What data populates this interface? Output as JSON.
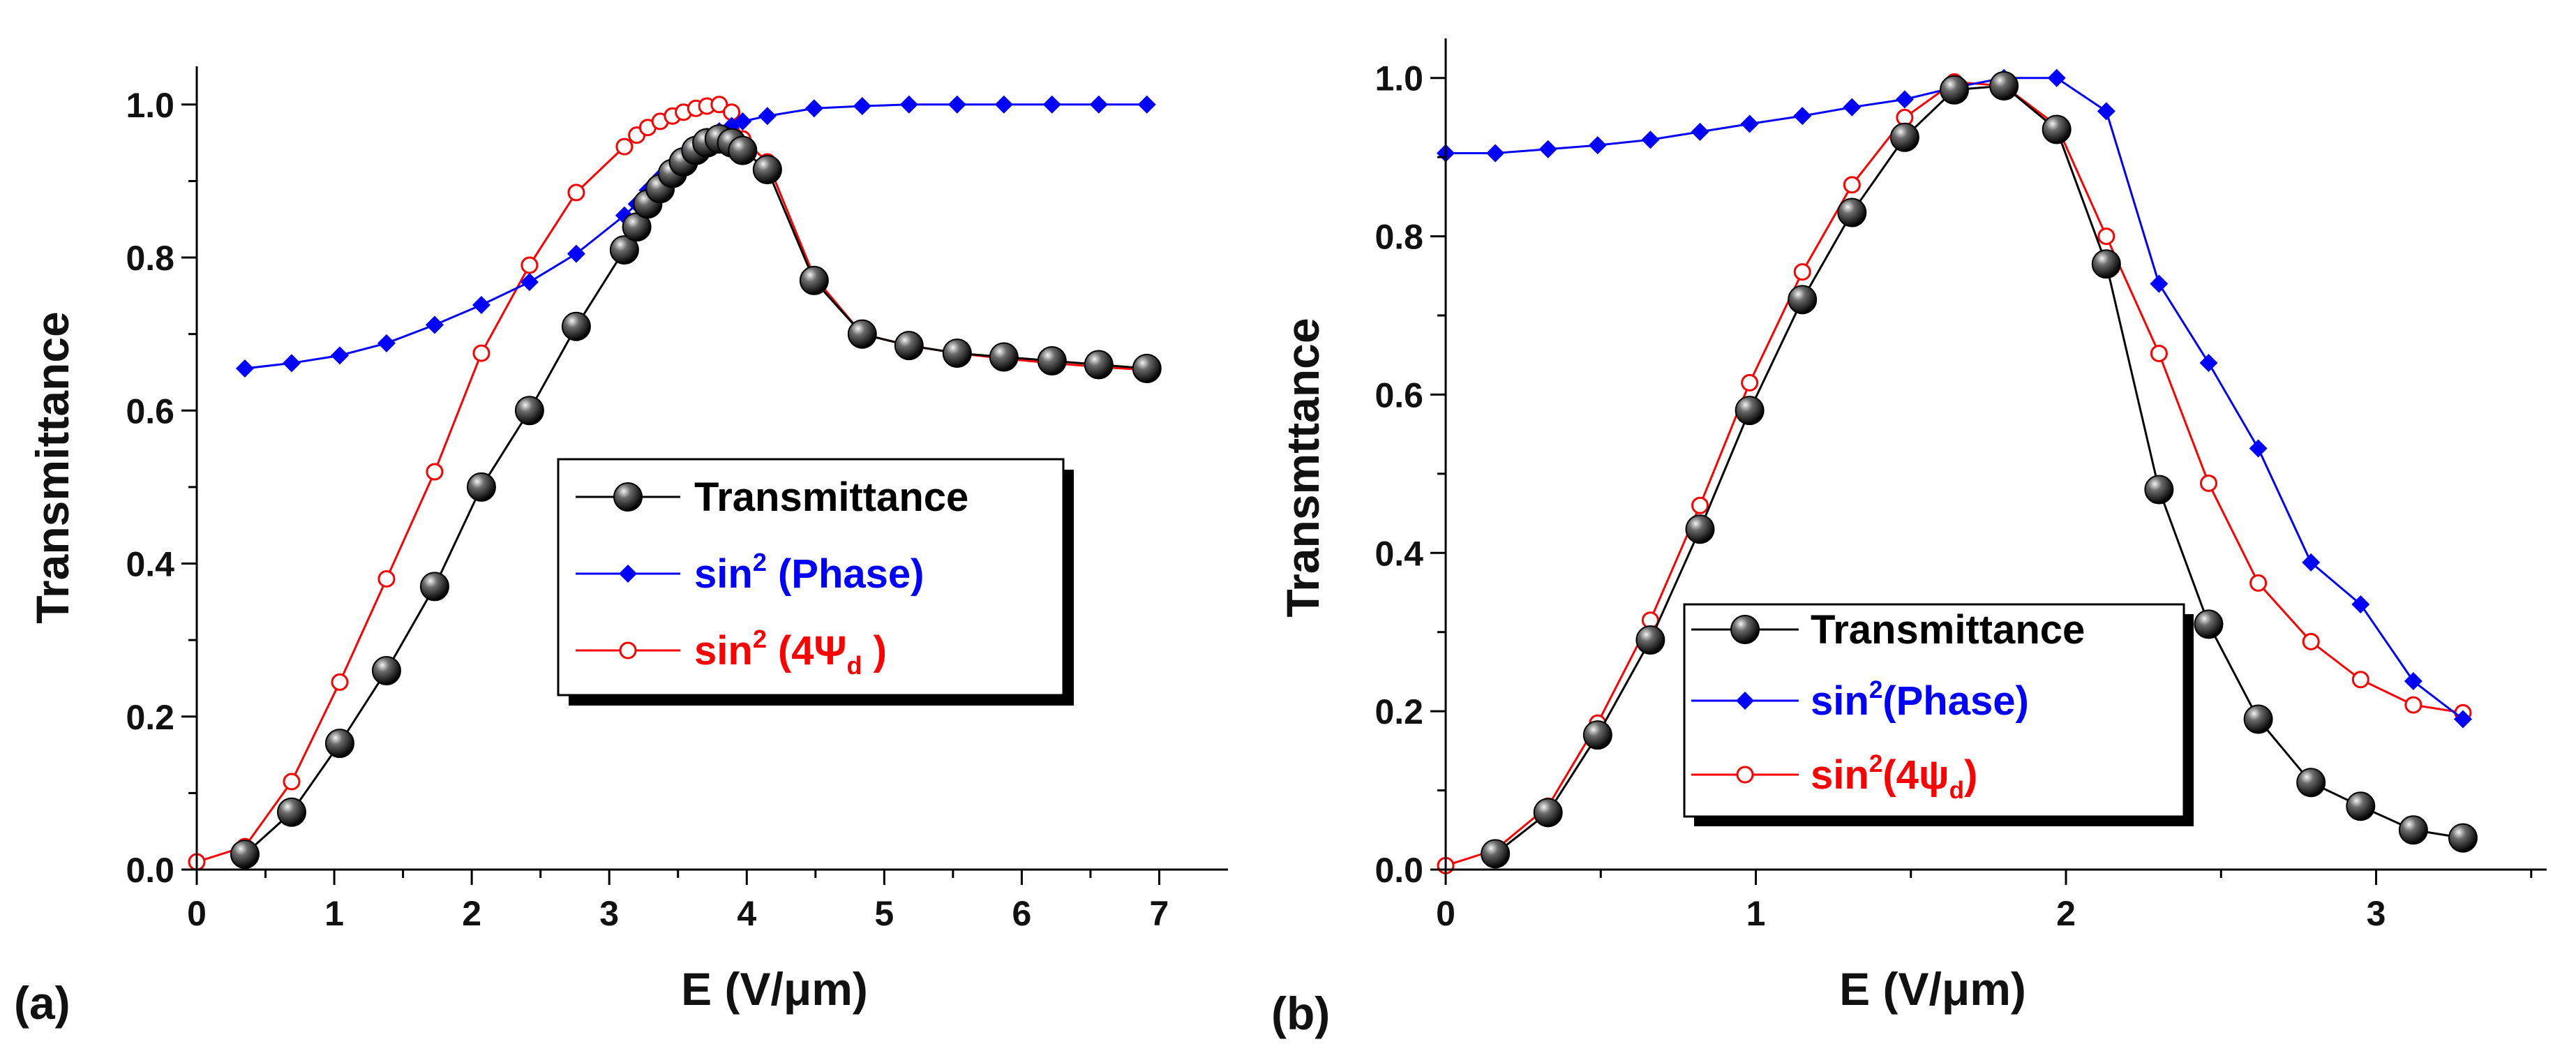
{
  "chart_data": [
    {
      "type": "line",
      "panel_label": "(a)",
      "xlabel": "E (V/μm)",
      "ylabel": "Transmittance",
      "xlim": [
        0,
        7.5
      ],
      "ylim": [
        0,
        1.05
      ],
      "xticks": [
        0,
        1,
        2,
        3,
        4,
        5,
        6,
        7
      ],
      "yticks": [
        0.0,
        0.2,
        0.4,
        0.6,
        0.8,
        1.0
      ],
      "xtick_labels": [
        "0",
        "1",
        "2",
        "3",
        "4",
        "5",
        "6",
        "7"
      ],
      "ytick_labels": [
        "0.0",
        "0.2",
        "0.4",
        "0.6",
        "0.8",
        "1.0"
      ],
      "legend_position": "center-right",
      "grid": false,
      "series": [
        {
          "name": "Transmittance",
          "color": "#000000",
          "marker": "sphere",
          "x": [
            0.35,
            0.69,
            1.04,
            1.38,
            1.73,
            2.07,
            2.42,
            2.76,
            3.11,
            3.2,
            3.28,
            3.37,
            3.46,
            3.54,
            3.63,
            3.71,
            3.8,
            3.89,
            3.97,
            4.15,
            4.49,
            4.84,
            5.18,
            5.53,
            5.87,
            6.22,
            6.56,
            6.91
          ],
          "y": [
            0.02,
            0.075,
            0.165,
            0.26,
            0.37,
            0.5,
            0.6,
            0.71,
            0.81,
            0.84,
            0.87,
            0.89,
            0.91,
            0.925,
            0.94,
            0.95,
            0.955,
            0.95,
            0.94,
            0.915,
            0.77,
            0.7,
            0.685,
            0.675,
            0.67,
            0.665,
            0.66,
            0.655
          ]
        },
        {
          "name": "sin² (Phase)",
          "color": "#0000ff",
          "marker": "diamond",
          "x": [
            0.35,
            0.69,
            1.04,
            1.38,
            1.73,
            2.07,
            2.42,
            2.76,
            3.11,
            3.2,
            3.28,
            3.37,
            3.46,
            3.54,
            3.63,
            3.71,
            3.8,
            3.89,
            3.97,
            4.15,
            4.49,
            4.84,
            5.18,
            5.53,
            5.87,
            6.22,
            6.56,
            6.91
          ],
          "y": [
            0.655,
            0.662,
            0.672,
            0.688,
            0.712,
            0.738,
            0.768,
            0.805,
            0.855,
            0.87,
            0.888,
            0.905,
            0.92,
            0.935,
            0.948,
            0.958,
            0.965,
            0.972,
            0.978,
            0.985,
            0.995,
            0.998,
            1.0,
            1.0,
            1.0,
            1.0,
            1.0,
            1.0
          ]
        },
        {
          "name": "sin² (4Ψd )",
          "color": "#ff0000",
          "marker": "open-circle",
          "x": [
            0.0,
            0.35,
            0.69,
            1.04,
            1.38,
            1.73,
            2.07,
            2.42,
            2.76,
            3.11,
            3.2,
            3.28,
            3.37,
            3.46,
            3.54,
            3.63,
            3.71,
            3.8,
            3.89,
            3.97,
            4.15,
            4.49,
            4.84,
            5.18,
            5.53,
            5.87,
            6.22,
            6.56,
            6.91
          ],
          "y": [
            0.01,
            0.03,
            0.115,
            0.245,
            0.38,
            0.52,
            0.675,
            0.79,
            0.885,
            0.945,
            0.96,
            0.97,
            0.978,
            0.985,
            0.99,
            0.995,
            0.998,
            1.0,
            0.99,
            0.955,
            0.925,
            0.775,
            0.7,
            0.685,
            0.675,
            0.668,
            0.662,
            0.657,
            0.653
          ]
        }
      ]
    },
    {
      "type": "line",
      "panel_label": "(b)",
      "xlabel": "E (V/μm)",
      "ylabel": "Transmttance",
      "xlim": [
        0,
        3.55
      ],
      "ylim": [
        0,
        1.05
      ],
      "xticks": [
        0,
        1,
        2,
        3
      ],
      "yticks": [
        0.0,
        0.2,
        0.4,
        0.6,
        0.8,
        1.0
      ],
      "xtick_labels": [
        "0",
        "1",
        "2",
        "3"
      ],
      "ytick_labels": [
        "0.0",
        "0.2",
        "0.4",
        "0.6",
        "0.8",
        "1.0"
      ],
      "legend_position": "lower-center",
      "grid": false,
      "series": [
        {
          "name": "Transmittance",
          "color": "#000000",
          "marker": "sphere",
          "x": [
            0.16,
            0.33,
            0.49,
            0.66,
            0.82,
            0.98,
            1.15,
            1.31,
            1.48,
            1.64,
            1.8,
            1.97,
            2.13,
            2.3,
            2.46,
            2.62,
            2.79,
            2.95,
            3.12,
            3.28
          ],
          "y": [
            0.02,
            0.072,
            0.17,
            0.29,
            0.43,
            0.58,
            0.72,
            0.83,
            0.925,
            0.985,
            0.99,
            0.935,
            0.765,
            0.48,
            0.31,
            0.19,
            0.11,
            0.08,
            0.05,
            0.04
          ]
        },
        {
          "name": "sin²(Phase)",
          "color": "#0000ff",
          "marker": "diamond",
          "x": [
            0.0,
            0.16,
            0.33,
            0.49,
            0.66,
            0.82,
            0.98,
            1.15,
            1.31,
            1.48,
            1.64,
            1.8,
            1.97,
            2.13,
            2.3,
            2.46,
            2.62,
            2.79,
            2.95,
            3.12,
            3.28
          ],
          "y": [
            0.905,
            0.905,
            0.91,
            0.915,
            0.922,
            0.932,
            0.942,
            0.952,
            0.963,
            0.973,
            0.988,
            1.0,
            1.0,
            0.958,
            0.74,
            0.64,
            0.532,
            0.388,
            0.335,
            0.238,
            0.19
          ]
        },
        {
          "name": "sin²(4ψd)",
          "color": "#ff0000",
          "marker": "open-circle",
          "x": [
            0.0,
            0.16,
            0.33,
            0.49,
            0.66,
            0.82,
            0.98,
            1.15,
            1.31,
            1.48,
            1.64,
            1.8,
            1.97,
            2.13,
            2.3,
            2.46,
            2.62,
            2.79,
            2.95,
            3.12,
            3.28
          ],
          "y": [
            0.005,
            0.025,
            0.08,
            0.185,
            0.315,
            0.46,
            0.615,
            0.755,
            0.865,
            0.95,
            0.995,
            0.99,
            0.94,
            0.8,
            0.652,
            0.488,
            0.362,
            0.288,
            0.24,
            0.208,
            0.198
          ]
        }
      ]
    }
  ],
  "legends": [
    {
      "items": [
        {
          "pre": "Transmittance",
          "sup": "",
          "mid": "",
          "sub": "",
          "post": ""
        },
        {
          "pre": "sin",
          "sup": "2",
          "mid": " (Phase)",
          "sub": "",
          "post": ""
        },
        {
          "pre": "sin",
          "sup": "2",
          "mid": " (4Ψ",
          "sub": "d",
          "post": " )"
        }
      ]
    },
    {
      "items": [
        {
          "pre": "Transmittance",
          "sup": "",
          "mid": "",
          "sub": "",
          "post": ""
        },
        {
          "pre": "sin",
          "sup": "2",
          "mid": "(Phase)",
          "sub": "",
          "post": ""
        },
        {
          "pre": "sin",
          "sup": "2",
          "mid": "(4ψ",
          "sub": "d",
          "post": ")"
        }
      ]
    }
  ]
}
